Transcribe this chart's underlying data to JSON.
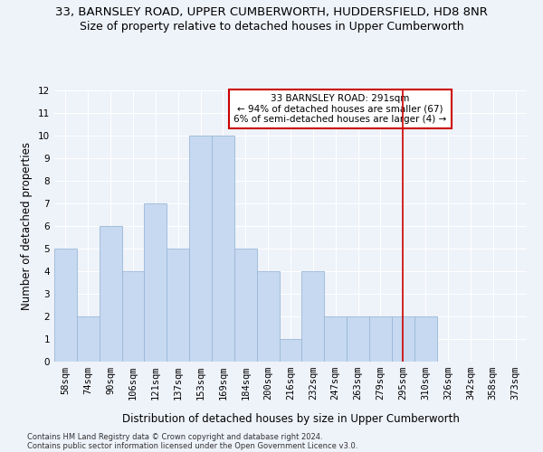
{
  "title": "33, BARNSLEY ROAD, UPPER CUMBERWORTH, HUDDERSFIELD, HD8 8NR",
  "subtitle": "Size of property relative to detached houses in Upper Cumberworth",
  "xlabel": "Distribution of detached houses by size in Upper Cumberworth",
  "ylabel": "Number of detached properties",
  "footer1": "Contains HM Land Registry data © Crown copyright and database right 2024.",
  "footer2": "Contains public sector information licensed under the Open Government Licence v3.0.",
  "categories": [
    "58sqm",
    "74sqm",
    "90sqm",
    "106sqm",
    "121sqm",
    "137sqm",
    "153sqm",
    "169sqm",
    "184sqm",
    "200sqm",
    "216sqm",
    "232sqm",
    "247sqm",
    "263sqm",
    "279sqm",
    "295sqm",
    "310sqm",
    "326sqm",
    "342sqm",
    "358sqm",
    "373sqm"
  ],
  "values": [
    5,
    2,
    6,
    4,
    7,
    5,
    10,
    10,
    5,
    4,
    1,
    4,
    2,
    2,
    2,
    2,
    2,
    0,
    0,
    0,
    0
  ],
  "bar_color": "#c6d9f0",
  "bar_edge_color": "#9ab8d8",
  "red_line_index": 15,
  "red_line_color": "#cc0000",
  "annotation_text": "33 BARNSLEY ROAD: 291sqm\n← 94% of detached houses are smaller (67)\n6% of semi-detached houses are larger (4) →",
  "annotation_box_color": "#ffffff",
  "annotation_box_edge": "#cc0000",
  "ylim": [
    0,
    12
  ],
  "yticks": [
    0,
    1,
    2,
    3,
    4,
    5,
    6,
    7,
    8,
    9,
    10,
    11,
    12
  ],
  "bg_color": "#eef2f9",
  "grid_color": "#ffffff",
  "title_fontsize": 9.5,
  "subtitle_fontsize": 9,
  "axis_label_fontsize": 8.5,
  "tick_fontsize": 7.5,
  "footer_fontsize": 6,
  "annotation_fontsize": 7.5
}
